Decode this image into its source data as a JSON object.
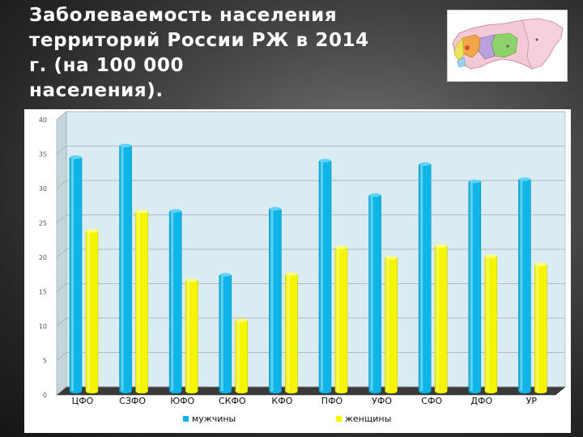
{
  "slide": {
    "title": "Заболеваемость населения\nтерриторий России РЖ в 2014\nг. (на 100 000\nнаселения)."
  },
  "map": {
    "icon": "russia-federal-districts-map"
  },
  "colors": {
    "men": "#0fb5e6",
    "women": "#f5f500",
    "plot_bg": "#d9ecf2",
    "chart_bg": "#ffffff"
  },
  "chart_data": {
    "type": "bar",
    "categories": [
      "ЦФО",
      "СЗФО",
      "ЮФО",
      "СКФО",
      "КФО",
      "ПФО",
      "УФО",
      "СФО",
      "ДФО",
      "УР"
    ],
    "series": [
      {
        "name": "мужчины",
        "values": [
          34.5,
          36.2,
          26.7,
          17.4,
          27.0,
          34.0,
          29.0,
          33.5,
          31.0,
          31.3
        ]
      },
      {
        "name": "женщины",
        "values": [
          23.8,
          26.6,
          16.6,
          10.8,
          17.5,
          21.4,
          19.9,
          21.6,
          20.1,
          18.9
        ]
      }
    ],
    "yticks": [
      "0",
      "5",
      "10",
      "15",
      "20",
      "25",
      "30",
      "35",
      "40"
    ],
    "ylim": [
      0,
      40
    ],
    "title": "",
    "xlabel": "",
    "ylabel": "",
    "grid": true,
    "legend_position": "bottom"
  }
}
